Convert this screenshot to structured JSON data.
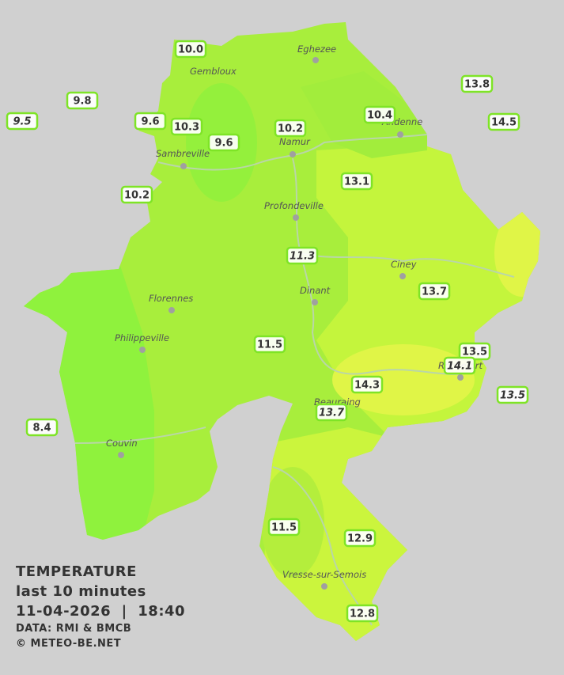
{
  "stations": [
    "10.0",
    "9.8",
    "9.5",
    "9.6",
    "10.3",
    "9.6",
    "10.2",
    "10.4",
    "13.8",
    "14.5",
    "10.2",
    "13.1",
    "11.3",
    "13.7",
    "11.5",
    "13.5",
    "14.1",
    "14.3",
    "13.7",
    "13.5",
    "8.4",
    "11.5",
    "12.9",
    "12.8"
  ],
  "cities": [
    "Eghezee",
    "Gembloux",
    "Andenne",
    "Namur",
    "Sambreville",
    "Profondeville",
    "Ciney",
    "Dinant",
    "Florennes",
    "Philippeville",
    "Rochefort",
    "Beauraing",
    "Couvin",
    "Vresse-sur-Semois"
  ],
  "legend": {
    "title": "TEMPERATURE",
    "subtitle": "last 10 minutes",
    "datetime": "11-04-2026  |  18:40",
    "source": "DATA: RMI & BMCB",
    "copyright": "© METEO-BE.NET"
  }
}
